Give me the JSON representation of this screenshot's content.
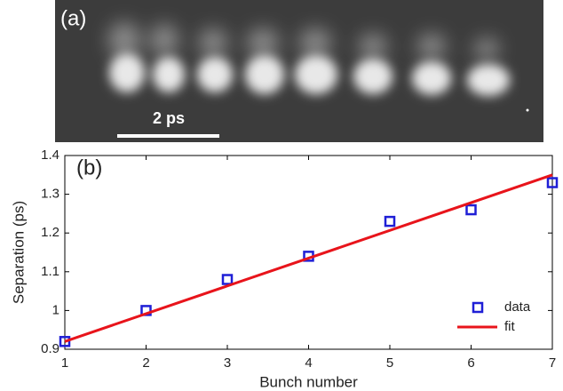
{
  "panel_a": {
    "label": "(a)",
    "scale_bar_label": "2 ps"
  },
  "chart_data": {
    "type": "scatter",
    "label": "(b)",
    "x_label": "Bunch number",
    "y_label": "Separation (ps)",
    "xlim": [
      1,
      7
    ],
    "xticks": [
      1,
      2,
      3,
      4,
      5,
      6,
      7
    ],
    "ylim": [
      0.9,
      1.4
    ],
    "yticks": [
      0.9,
      1,
      1.1,
      1.2,
      1.3,
      1.4
    ],
    "legend": "lower right",
    "series": [
      {
        "name": "data",
        "type": "scatter",
        "color": "#1f1fd6",
        "x": [
          1,
          2,
          3,
          4,
          5,
          6,
          7
        ],
        "values": [
          0.92,
          1.0,
          1.08,
          1.14,
          1.23,
          1.26,
          1.33
        ]
      },
      {
        "name": "fit",
        "type": "line",
        "color": "#e8141b",
        "x": [
          1,
          7
        ],
        "values": [
          0.92,
          1.35
        ]
      }
    ]
  }
}
